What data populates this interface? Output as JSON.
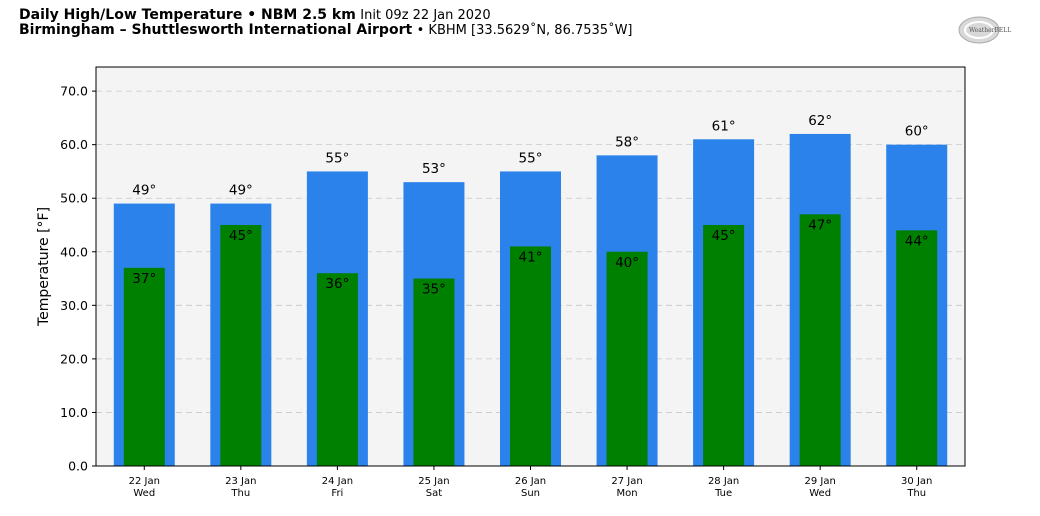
{
  "header": {
    "line1_bold": "Daily High/Low Temperature • NBM 2.5 km",
    "line1_normal": "Init 09z 22 Jan 2020",
    "line2_bold": "Birmingham – Shuttlesworth International Airport",
    "line2_normal": "• KBHM [33.5629˚N, 86.7535˚W]"
  },
  "logo": {
    "text": "WeatherBELL",
    "icon": "weatherbell-logo"
  },
  "chart_data": {
    "type": "bar",
    "title": "",
    "ylabel": "Temperature [°F]",
    "xlabel": "",
    "ylim": [
      0,
      74.5
    ],
    "yticks": [
      "0.0",
      "10.0",
      "20.0",
      "30.0",
      "40.0",
      "50.0",
      "60.0",
      "70.0"
    ],
    "grid": true,
    "categories": [
      {
        "date": "22 Jan",
        "day": "Wed"
      },
      {
        "date": "23 Jan",
        "day": "Thu"
      },
      {
        "date": "24 Jan",
        "day": "Fri"
      },
      {
        "date": "25 Jan",
        "day": "Sat"
      },
      {
        "date": "26 Jan",
        "day": "Sun"
      },
      {
        "date": "27 Jan",
        "day": "Mon"
      },
      {
        "date": "28 Jan",
        "day": "Tue"
      },
      {
        "date": "29 Jan",
        "day": "Wed"
      },
      {
        "date": "30 Jan",
        "day": "Thu"
      }
    ],
    "series": [
      {
        "key": "high",
        "color": "#2a82ea",
        "values": [
          49,
          49,
          55,
          53,
          55,
          58,
          61,
          62,
          60
        ],
        "labels": [
          "49°",
          "49°",
          "55°",
          "53°",
          "55°",
          "58°",
          "61°",
          "62°",
          "60°"
        ]
      },
      {
        "key": "low",
        "color": "#008000",
        "values": [
          37,
          45,
          36,
          35,
          41,
          40,
          45,
          47,
          44
        ],
        "labels": [
          "37°",
          "45°",
          "36°",
          "35°",
          "41°",
          "40°",
          "45°",
          "47°",
          "44°"
        ]
      }
    ],
    "plot_background": "#f4f4f4"
  }
}
